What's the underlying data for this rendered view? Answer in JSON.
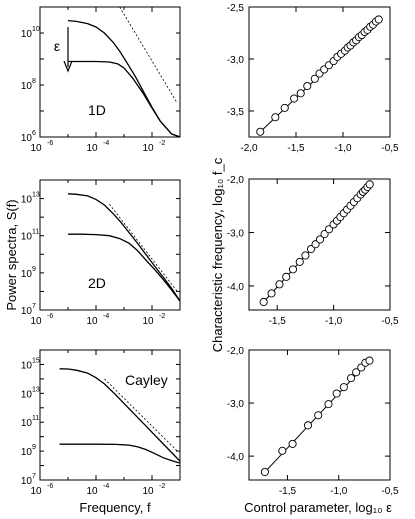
{
  "chart_data": {
    "left_panels": [
      {
        "type": "line",
        "label": "1D",
        "x_exp_ticks": [
          "-6",
          "-4",
          "-2"
        ],
        "y_exp_ticks": [
          "6",
          "8",
          "10"
        ],
        "xlim": [
          1e-06,
          0.1
        ],
        "ylim": [
          1000000.0,
          100000000000.0
        ],
        "eps_symbol": "ε",
        "series": [
          {
            "x": [
              1e-05,
              2e-05,
              5e-05,
              0.0001,
              0.0002,
              0.0004,
              0.0007,
              0.0012,
              0.0025,
              0.005,
              0.01,
              0.02,
              0.05,
              0.1
            ],
            "y": [
              30000000000.0,
              28000000000.0,
              23000000000.0,
              17000000000.0,
              10000000000.0,
              4500000000.0,
              2000000000.0,
              800000000.0,
              220000000.0,
              55000000.0,
              14000000.0,
              4000000.0,
              1300000.0,
              1000000.0
            ]
          },
          {
            "x": [
              1e-05,
              3e-05,
              0.0001,
              0.0003,
              0.0006,
              0.001,
              0.002,
              0.005,
              0.01,
              0.02,
              0.05,
              0.1
            ],
            "y": [
              800000000.0,
              800000000.0,
              800000000.0,
              770000000.0,
              650000000.0,
              450000000.0,
              190000000.0,
              45000000.0,
              13000000.0,
              4000000.0,
              1300000.0,
              1000000.0
            ]
          }
        ],
        "guide": {
          "x": [
            0.0007,
            0.08
          ],
          "y": [
            100000000000.0,
            20000000.0
          ]
        }
      },
      {
        "type": "line",
        "label": "2D",
        "x_exp_ticks": [
          "-6",
          "-4",
          "-2"
        ],
        "y_exp_ticks": [
          "7",
          "9",
          "11",
          "13"
        ],
        "xlim": [
          1e-06,
          0.1
        ],
        "ylim": [
          10000000.0,
          100000000000000.0
        ],
        "series": [
          {
            "x": [
              1e-05,
              2e-05,
              5e-05,
              0.0001,
              0.0002,
              0.0004,
              0.0008,
              0.0015,
              0.003,
              0.006,
              0.012,
              0.025,
              0.05,
              0.1
            ],
            "y": [
              18000000000000.0,
              17000000000000.0,
              14000000000000.0,
              9000000000000.0,
              4500000000000.0,
              1600000000000.0,
              500000000000.0,
              150000000000.0,
              40000000000.0,
              10000000000.0,
              2500000000.0,
              600000000.0,
              150000000.0,
              30000000.0
            ]
          },
          {
            "x": [
              1e-05,
              3e-05,
              0.0001,
              0.0003,
              0.0007,
              0.0015,
              0.003,
              0.006,
              0.012,
              0.025,
              0.05,
              0.1
            ],
            "y": [
              120000000000.0,
              120000000000.0,
              115000000000.0,
              100000000000.0,
              70000000000.0,
              40000000000.0,
              16000000000.0,
              5000000000.0,
              1600000000.0,
              450000000.0,
              120000000.0,
              30000000.0
            ]
          }
        ],
        "guide": {
          "x": [
            0.0003,
            0.08
          ],
          "y": [
            5000000000000.0,
            100000000.0
          ]
        }
      },
      {
        "type": "line",
        "label": "Cayley",
        "x_exp_ticks": [
          "-6",
          "-4",
          "-2"
        ],
        "y_exp_ticks": [
          "7",
          "9",
          "11",
          "13",
          "15"
        ],
        "xlim": [
          1e-06,
          0.1
        ],
        "ylim": [
          10000000.0,
          1e+16
        ],
        "series": [
          {
            "x": [
              5e-06,
              1e-05,
              2e-05,
              5e-05,
              0.0001,
              0.0002,
              0.0005,
              0.001,
              0.002,
              0.005,
              0.01,
              0.02,
              0.05,
              0.1
            ],
            "y": [
              500000000000000.0,
              480000000000000.0,
              400000000000000.0,
              250000000000000.0,
              120000000000000.0,
              45000000000000.0,
              8000000000000.0,
              2000000000000.0,
              500000000000.0,
              80000000000.0,
              20000000000.0,
              5000000000.0,
              800000000.0,
              200000000.0
            ]
          },
          {
            "x": [
              5e-06,
              3e-05,
              0.0001,
              0.0005,
              0.0015,
              0.003,
              0.006,
              0.012,
              0.025,
              0.05,
              0.1
            ],
            "y": [
              3000000000.0,
              3000000000.0,
              3000000000.0,
              2900000000.0,
              2600000000.0,
              2000000000.0,
              1300000000.0,
              700000000.0,
              350000000.0,
              220000000.0,
              150000000.0
            ]
          }
        ],
        "guide": {
          "x": [
            0.0002,
            0.08
          ],
          "y": [
            100000000000000.0,
            1000000000.0
          ]
        }
      }
    ],
    "right_panels": [
      {
        "type": "scatter",
        "xlim": [
          -2.0,
          -0.5
        ],
        "ylim": [
          -3.75,
          -2.5
        ],
        "x_ticks": [
          -2.0,
          -1.5,
          -1.0,
          -0.5
        ],
        "x_tick_labels": [
          "-2,0",
          "-1,5",
          "-1,0",
          "-0,5"
        ],
        "y_ticks": [
          -3.5,
          -3.0,
          -2.5
        ],
        "y_tick_labels": [
          "-3,5",
          "-3,0",
          "-2,5"
        ],
        "fit": {
          "x": [
            -1.88,
            -0.62
          ],
          "y": [
            -3.7,
            -2.62
          ]
        },
        "points_x": [
          -1.88,
          -1.72,
          -1.62,
          -1.52,
          -1.45,
          -1.38,
          -1.3,
          -1.25,
          -1.2,
          -1.15,
          -1.1,
          -1.06,
          -1.02,
          -0.98,
          -0.95,
          -0.92,
          -0.89,
          -0.86,
          -0.83,
          -0.8,
          -0.77,
          -0.74,
          -0.71,
          -0.68,
          -0.65,
          -0.62
        ],
        "points_y": [
          -3.7,
          -3.56,
          -3.47,
          -3.38,
          -3.33,
          -3.26,
          -3.19,
          -3.14,
          -3.1,
          -3.06,
          -3.02,
          -2.98,
          -2.95,
          -2.92,
          -2.89,
          -2.87,
          -2.84,
          -2.82,
          -2.79,
          -2.77,
          -2.74,
          -2.72,
          -2.69,
          -2.67,
          -2.64,
          -2.62
        ]
      },
      {
        "type": "scatter",
        "xlim": [
          -1.75,
          -0.5
        ],
        "ylim": [
          -4.45,
          -2.0
        ],
        "x_ticks": [
          -1.5,
          -1.0,
          -0.5
        ],
        "x_tick_labels": [
          "-1,5",
          "-1,0",
          "-0,5"
        ],
        "y_ticks": [
          -4.0,
          -3.0,
          -2.0
        ],
        "y_tick_labels": [
          "-4,0",
          "-3,0",
          "-2,0"
        ],
        "fit": {
          "x": [
            -1.62,
            -0.68
          ],
          "y": [
            -4.3,
            -2.1
          ]
        },
        "points_x": [
          -1.62,
          -1.55,
          -1.48,
          -1.42,
          -1.36,
          -1.3,
          -1.25,
          -1.2,
          -1.16,
          -1.12,
          -1.08,
          -1.04,
          -1.0,
          -0.97,
          -0.94,
          -0.91,
          -0.88,
          -0.85,
          -0.82,
          -0.79,
          -0.76,
          -0.74,
          -0.72,
          -0.7,
          -0.68
        ],
        "points_y": [
          -4.3,
          -4.14,
          -3.97,
          -3.83,
          -3.69,
          -3.55,
          -3.43,
          -3.31,
          -3.22,
          -3.13,
          -3.03,
          -2.94,
          -2.85,
          -2.78,
          -2.71,
          -2.64,
          -2.57,
          -2.5,
          -2.43,
          -2.36,
          -2.29,
          -2.24,
          -2.2,
          -2.15,
          -2.1
        ]
      },
      {
        "type": "scatter",
        "xlim": [
          -1.875,
          -0.5
        ],
        "ylim": [
          -4.45,
          -2.0
        ],
        "x_ticks": [
          -1.5,
          -1.0,
          -0.5
        ],
        "x_tick_labels": [
          "-1,5",
          "-1,0",
          "-0,5"
        ],
        "y_ticks": [
          -4.0,
          -3.0,
          -2.0
        ],
        "y_tick_labels": [
          "-4,0",
          "-3,0",
          "-2,0"
        ],
        "fit": {
          "x": [
            -1.72,
            -0.7
          ],
          "y": [
            -4.3,
            -2.2
          ]
        },
        "points_x": [
          -1.72,
          -1.55,
          -1.45,
          -1.3,
          -1.2,
          -1.1,
          -1.02,
          -0.95,
          -0.88,
          -0.83,
          -0.78,
          -0.74,
          -0.7
        ],
        "points_y": [
          -4.3,
          -3.9,
          -3.77,
          -3.42,
          -3.23,
          -3.02,
          -2.82,
          -2.7,
          -2.53,
          -2.42,
          -2.33,
          -2.24,
          -2.2
        ]
      }
    ],
    "left_ylabel": "Power spectra, S(f)",
    "left_xlabel": "Frequency, f",
    "right_ylabel": "Characteristic frequency, log₁₀ f_c",
    "right_xlabel": "Control parameter, log₁₀ ε"
  }
}
